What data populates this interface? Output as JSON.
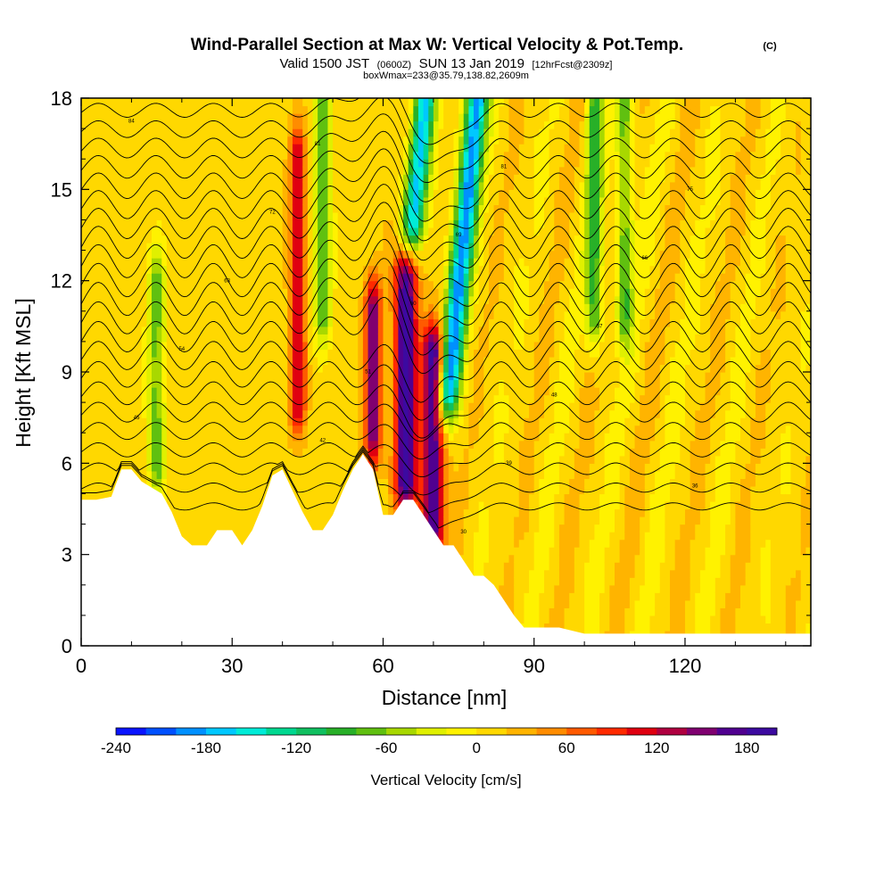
{
  "colors": {
    "terrain": "#ffffff",
    "contour": "#000000"
  },
  "chart_data": {
    "type": "heatmap",
    "title": "Wind-Parallel Section at Max W: Vertical Velocity & Pot.Temp.",
    "title_mark": "(C)",
    "subtitle": {
      "part1": "Valid 1500 JST",
      "part2": "(0600Z)",
      "part3": "SUN 13 Jan 2019",
      "part4": "[12hrFcst@2309z]"
    },
    "subtitle2": "boxWmax=233@35.79,138.82,2609m",
    "xlabel": "Distance [nm]",
    "ylabel": "Height [Kft MSL]",
    "xlim": [
      0,
      145
    ],
    "ylim": [
      0,
      18
    ],
    "xticks": [
      0,
      30,
      60,
      90,
      120
    ],
    "xtick_labels": [
      "0",
      "30",
      "60",
      "90",
      "120"
    ],
    "yticks": [
      0,
      3,
      6,
      9,
      12,
      15,
      18
    ],
    "ytick_labels": [
      "0",
      "3",
      "6",
      "9",
      "12",
      "15",
      "18"
    ],
    "colorbar": {
      "label": "Vertical Velocity [cm/s]",
      "min": -240,
      "max": 200,
      "step": 20,
      "tick_values": [
        -240,
        -180,
        -120,
        -60,
        0,
        60,
        120,
        180
      ],
      "tick_labels": [
        "-240",
        "-180",
        "-120",
        "-60",
        "0",
        "60",
        "120",
        "180"
      ],
      "colors": [
        "#0a14ff",
        "#0050ff",
        "#0090ff",
        "#00c8ff",
        "#00ecd8",
        "#00d890",
        "#10c060",
        "#28b028",
        "#60c010",
        "#a8d800",
        "#e0f000",
        "#fff200",
        "#ffd800",
        "#ffb400",
        "#ff8c00",
        "#ff5a00",
        "#ff2a00",
        "#e00010",
        "#b00040",
        "#800070",
        "#500090",
        "#3c0aa0"
      ]
    },
    "terrain_kft": [
      [
        0,
        4.8
      ],
      [
        3,
        4.8
      ],
      [
        6,
        4.9
      ],
      [
        8,
        5.8
      ],
      [
        10,
        5.8
      ],
      [
        12,
        5.4
      ],
      [
        14,
        5.2
      ],
      [
        16,
        5.0
      ],
      [
        18,
        4.4
      ],
      [
        20,
        3.6
      ],
      [
        22,
        3.3
      ],
      [
        25,
        3.3
      ],
      [
        27,
        3.8
      ],
      [
        30,
        3.8
      ],
      [
        32,
        3.3
      ],
      [
        34,
        3.8
      ],
      [
        36,
        4.6
      ],
      [
        38,
        5.6
      ],
      [
        40,
        5.8
      ],
      [
        42,
        5.1
      ],
      [
        44,
        4.4
      ],
      [
        46,
        3.8
      ],
      [
        48,
        3.8
      ],
      [
        50,
        4.3
      ],
      [
        52,
        5.1
      ],
      [
        54,
        5.8
      ],
      [
        56,
        6.3
      ],
      [
        58,
        5.8
      ],
      [
        60,
        4.3
      ],
      [
        62,
        4.3
      ],
      [
        64,
        4.8
      ],
      [
        66,
        4.8
      ],
      [
        68,
        4.3
      ],
      [
        70,
        3.8
      ],
      [
        72,
        3.3
      ],
      [
        74,
        3.3
      ],
      [
        76,
        2.8
      ],
      [
        78,
        2.3
      ],
      [
        80,
        2.3
      ],
      [
        82,
        2.0
      ],
      [
        84,
        1.5
      ],
      [
        86,
        1.0
      ],
      [
        88,
        0.6
      ],
      [
        90,
        0.6
      ],
      [
        95,
        0.6
      ],
      [
        100,
        0.4
      ],
      [
        145,
        0.4
      ]
    ],
    "w_features": [
      {
        "x": 43,
        "z0": 8,
        "z1": 16,
        "w": 110
      },
      {
        "x": 48,
        "z0": 11,
        "z1": 18,
        "w": -90
      },
      {
        "x": 58,
        "z0": 7,
        "z1": 11,
        "w": 150
      },
      {
        "x": 64.5,
        "z0": 5.5,
        "z1": 12,
        "w": 195
      },
      {
        "x": 70,
        "z0": 4,
        "z1": 9.5,
        "w": 180
      },
      {
        "x": 73,
        "z0": 8.5,
        "z1": 18,
        "w": -200
      },
      {
        "x": 66,
        "z0": 14,
        "z1": 18,
        "w": -170
      },
      {
        "x": 102,
        "z0": 11,
        "z1": 18,
        "w": -100
      },
      {
        "x": 108,
        "z0": 11,
        "z1": 18,
        "w": -90
      },
      {
        "x": 15,
        "z0": 6,
        "z1": 12,
        "w": -80
      }
    ],
    "theta_labels": [
      "84",
      "81",
      "81",
      "75",
      "72",
      "69",
      "66",
      "63",
      "60",
      "57",
      "54",
      "51",
      "48",
      "45",
      "42",
      "39",
      "36",
      "33",
      "30"
    ]
  }
}
